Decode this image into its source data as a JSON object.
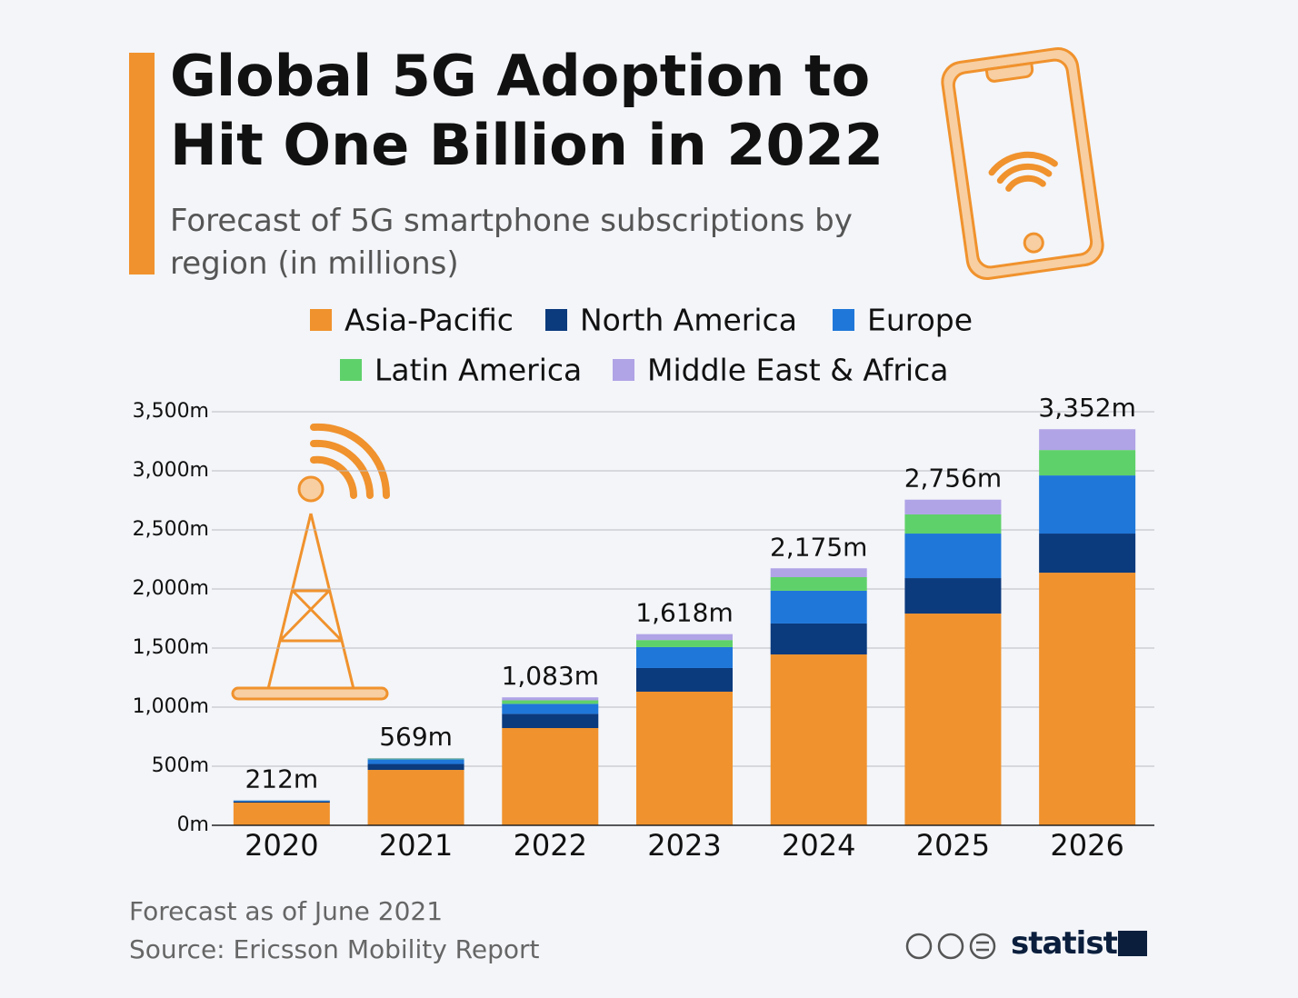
{
  "chart_data": {
    "type": "stacked_bar",
    "title": "Global 5G Adoption to Hit One Billion in 2022",
    "subtitle": "Forecast of 5G smartphone subscriptions by region (in millions)",
    "categories": [
      "2020",
      "2021",
      "2022",
      "2023",
      "2024",
      "2025",
      "2026"
    ],
    "series": [
      {
        "name": "Asia-Pacific",
        "color": "#f0922d",
        "values": [
          192,
          469,
          823,
          1131,
          1446,
          1792,
          2138
        ]
      },
      {
        "name": "North America",
        "color": "#0b3a7d",
        "values": [
          10,
          50,
          120,
          200,
          262,
          300,
          331
        ]
      },
      {
        "name": "Europe",
        "color": "#1f77d9",
        "values": [
          8,
          40,
          85,
          177,
          277,
          377,
          492
        ]
      },
      {
        "name": "Latin America",
        "color": "#5fd16a",
        "values": [
          1,
          6,
          30,
          60,
          115,
          162,
          215
        ]
      },
      {
        "name": "Middle East & Africa",
        "color": "#b0a3e6",
        "values": [
          1,
          4,
          25,
          50,
          75,
          125,
          176
        ]
      }
    ],
    "totals": {
      "values": [
        212,
        569,
        1083,
        1618,
        2175,
        2756,
        3352
      ],
      "value_labels": [
        "212m",
        "569m",
        "1,083m",
        "1,618m",
        "2,175m",
        "2,756m",
        "3,352m"
      ]
    },
    "ylim": [
      0,
      3500
    ],
    "yticks": [
      {
        "value": 0,
        "label": "0m"
      },
      {
        "value": 500,
        "label": "500m"
      },
      {
        "value": 1000,
        "label": "1,000m"
      },
      {
        "value": 1500,
        "label": "1,500m"
      },
      {
        "value": 2000,
        "label": "2,000m"
      },
      {
        "value": 2500,
        "label": "2,500m"
      },
      {
        "value": 3000,
        "label": "3,000m"
      },
      {
        "value": 3500,
        "label": "3,500m"
      }
    ],
    "grid": true,
    "notes": [
      "Forecast as of June 2021",
      "Source: Ericsson Mobility Report"
    ],
    "brand": "statista"
  }
}
